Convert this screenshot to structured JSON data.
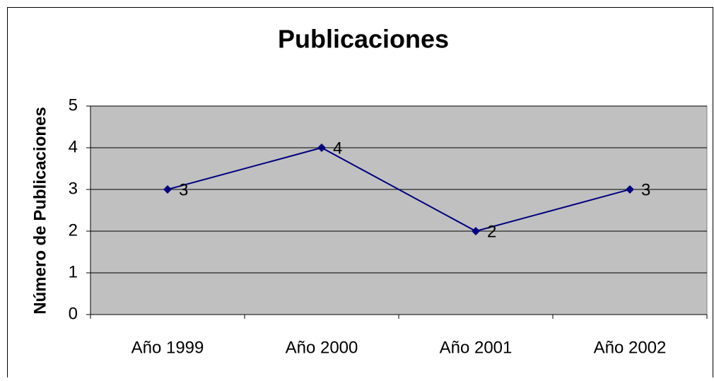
{
  "chart_data": {
    "type": "line",
    "title": "Publicaciones",
    "y_label": "Número de Publicaciones",
    "categories": [
      "Año 1999",
      "Año 2000",
      "Año 2001",
      "Año 2002"
    ],
    "series": [
      {
        "name": "Publicaciones",
        "color": "#000080",
        "values": [
          3,
          4,
          2,
          3
        ]
      }
    ],
    "ylim": [
      0,
      5
    ],
    "yticks": [
      0,
      1,
      2,
      3,
      4,
      5
    ],
    "grid": true,
    "data_labels": true
  }
}
